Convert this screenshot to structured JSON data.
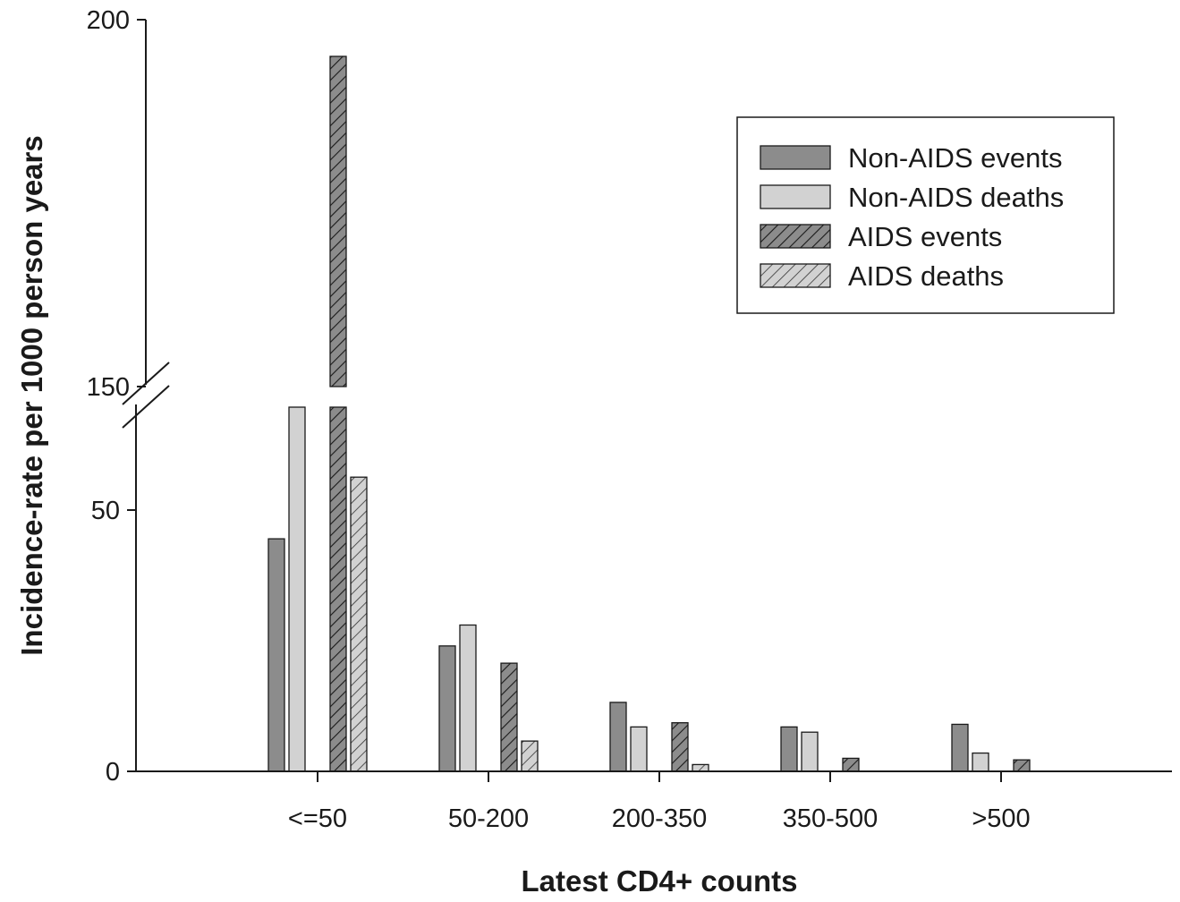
{
  "chart_data": {
    "type": "bar",
    "xlabel": "Latest CD4+ counts",
    "ylabel": "Incidence-rate per 1000 person years",
    "categories": [
      "<=50",
      "50-200",
      "200-350",
      "350-500",
      ">500"
    ],
    "y_axis_break": {
      "below": [
        0,
        60
      ],
      "above": [
        150,
        200
      ]
    },
    "yticks": [
      {
        "value": 0,
        "label": "0"
      },
      {
        "value": 50,
        "label": "50"
      },
      {
        "value": 150,
        "label": "150"
      },
      {
        "value": 200,
        "label": "200"
      }
    ],
    "series": [
      {
        "name": "Non-AIDS events",
        "values": [
          44.5,
          24,
          13.2,
          8.5,
          9
        ],
        "color": "#8c8c8c",
        "hatched": false
      },
      {
        "name": "Non-AIDS deaths",
        "values": [
          63,
          28,
          8.5,
          7.5,
          3.5
        ],
        "color": "#d2d2d2",
        "hatched": false
      },
      {
        "name": "AIDS events",
        "values": [
          195,
          20.7,
          9.3,
          2.5,
          2.2
        ],
        "color": "#8c8c8c",
        "hatched": true
      },
      {
        "name": "AIDS deaths",
        "values": [
          56.3,
          5.8,
          1.3,
          0,
          0
        ],
        "color": "#d2d2d2",
        "hatched": true
      }
    ],
    "legend_position": "top-right",
    "grid": false
  }
}
